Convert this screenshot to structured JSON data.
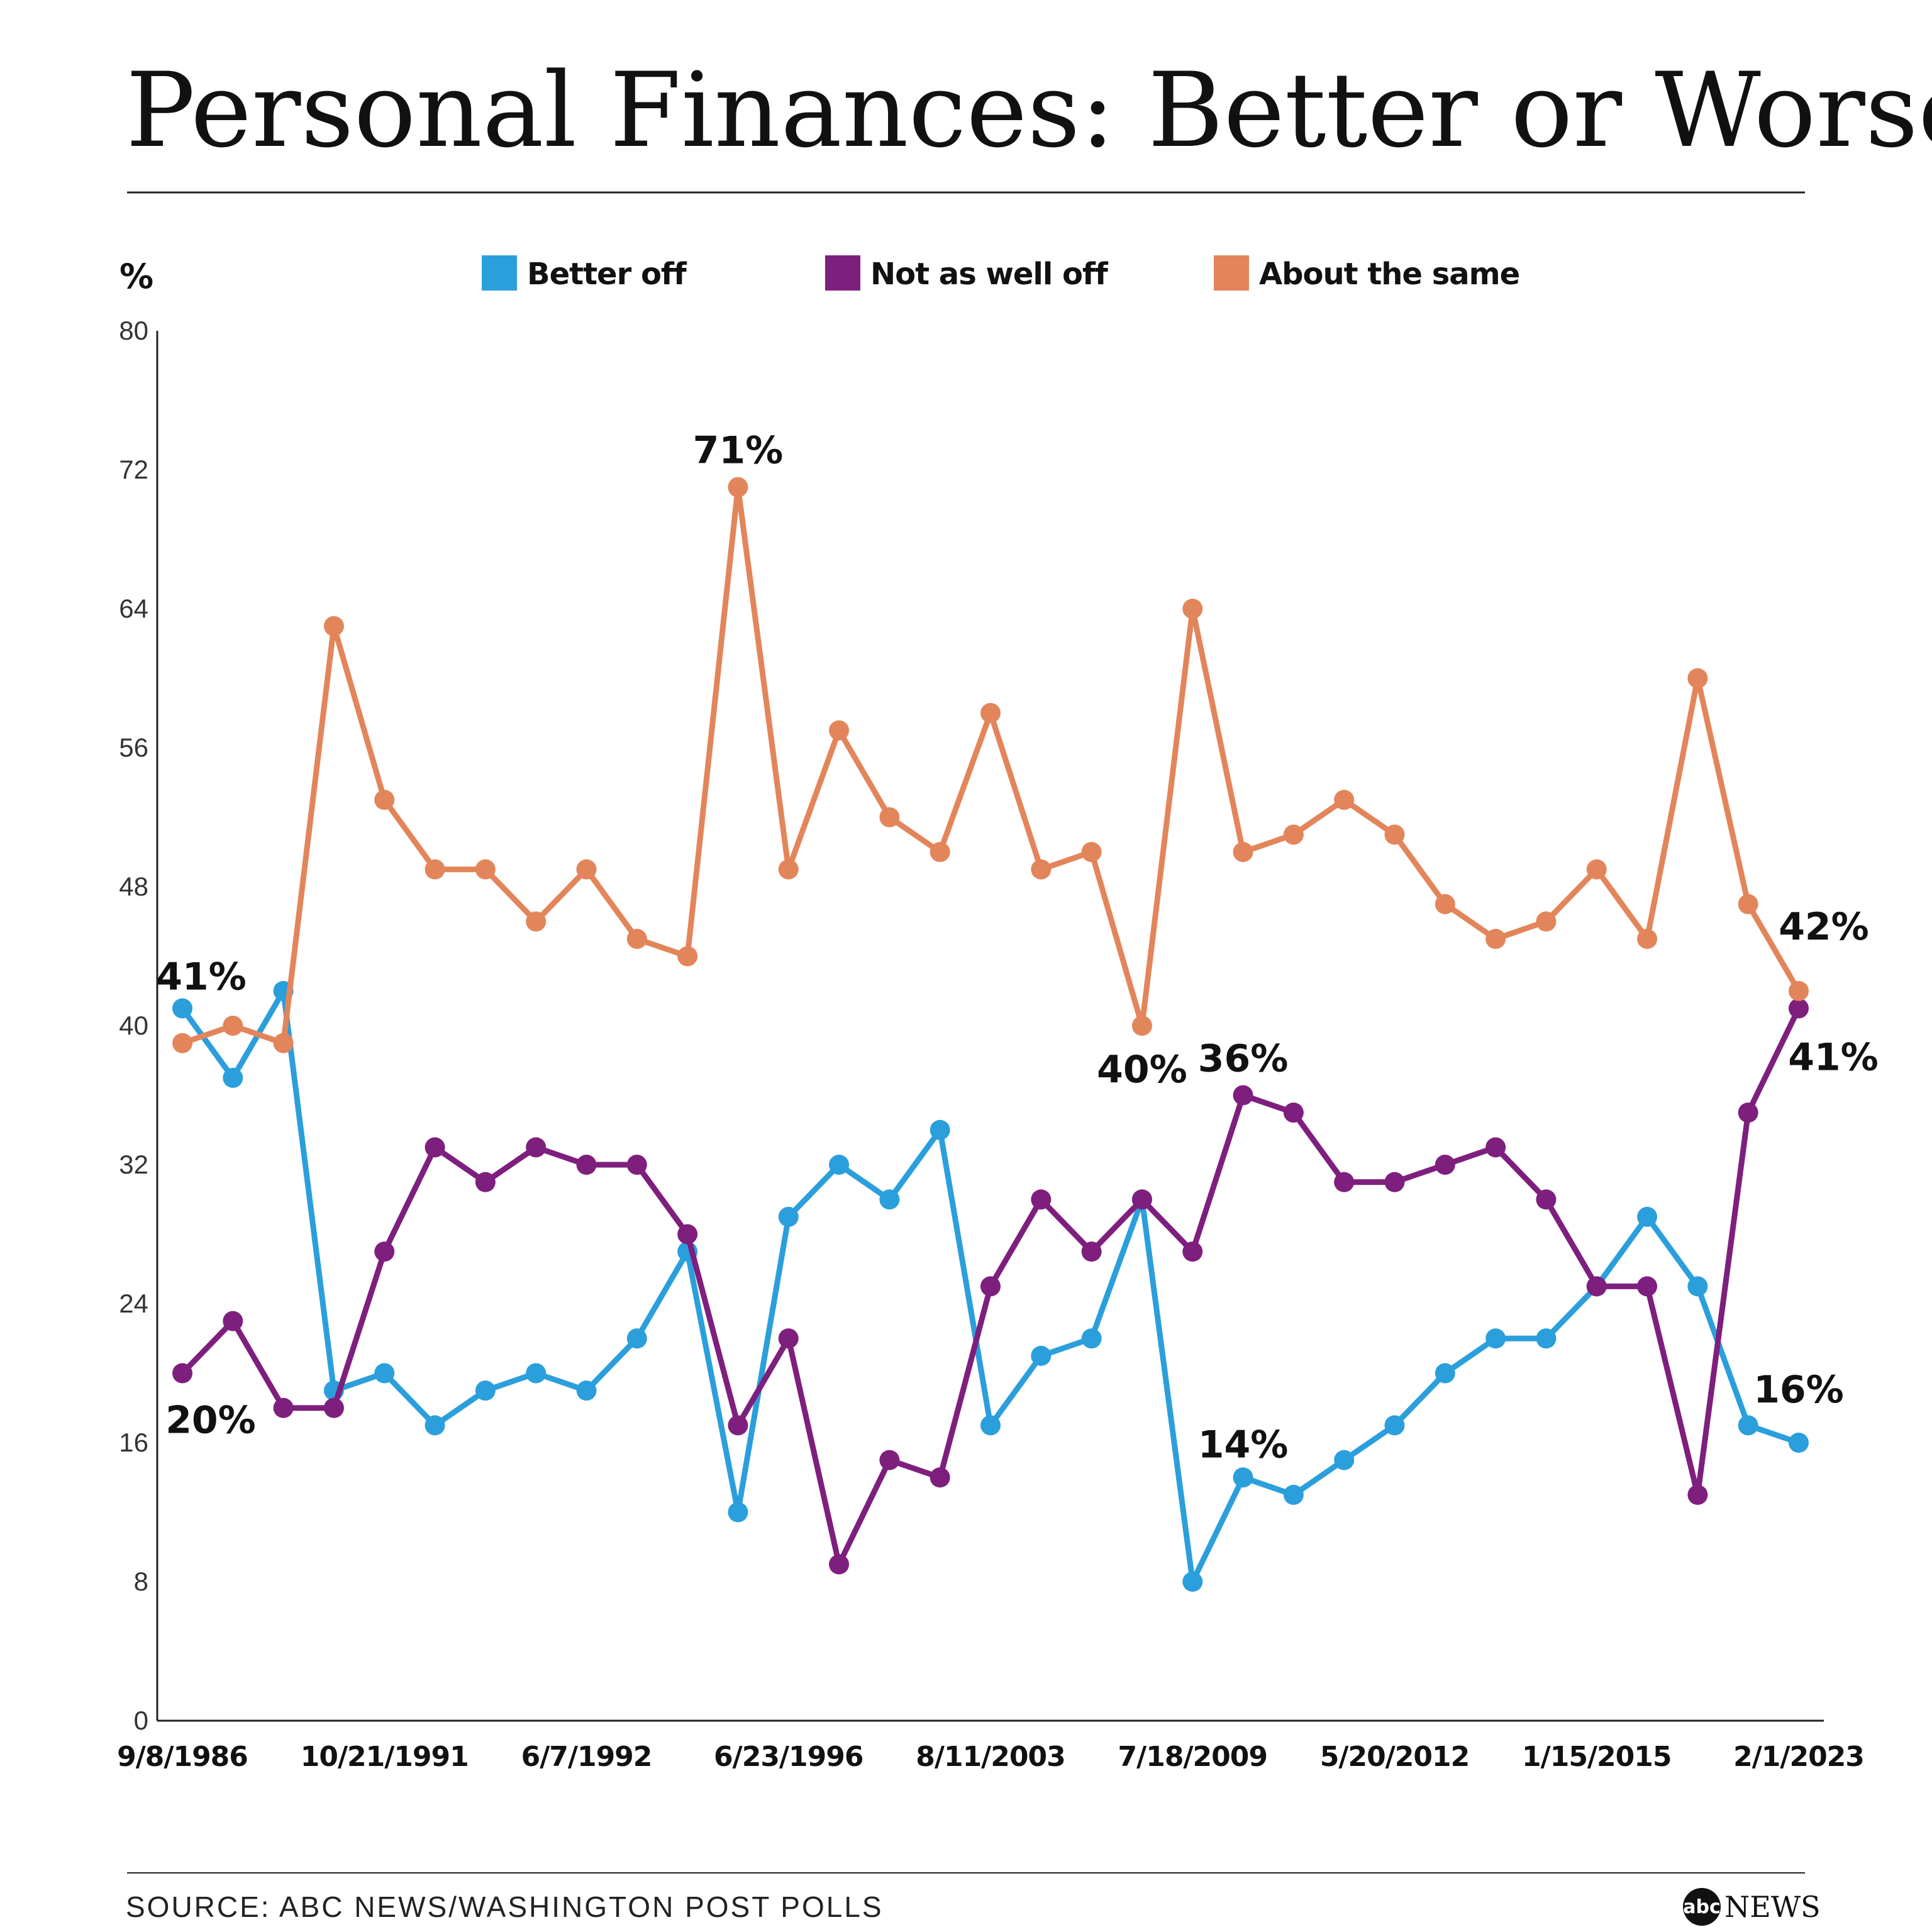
{
  "chart_data": {
    "type": "line",
    "title": "Personal Finances: Better or Worse?",
    "ylabel": "%",
    "ylim": [
      0,
      80
    ],
    "yticks": [
      0,
      8,
      16,
      24,
      32,
      40,
      48,
      56,
      64,
      72,
      80
    ],
    "x_tick_labels": [
      "9/8/1986",
      "10/21/1991",
      "6/7/1992",
      "6/23/1996",
      "8/11/2003",
      "7/18/2009",
      "5/20/2012",
      "1/15/2015",
      "2/1/2023"
    ],
    "legend_position": "top",
    "series": [
      {
        "name": "Better off",
        "color": "#2B9FDC",
        "values": [
          41,
          37,
          42,
          19,
          20,
          17,
          19,
          20,
          19,
          22,
          27,
          12,
          29,
          32,
          30,
          34,
          17,
          21,
          22,
          30,
          8,
          14,
          13,
          15,
          17,
          20,
          22,
          22,
          25,
          29,
          25,
          17,
          16
        ]
      },
      {
        "name": "Not as well off",
        "color": "#7E1F7E",
        "values": [
          20,
          23,
          18,
          18,
          27,
          33,
          31,
          33,
          32,
          32,
          28,
          17,
          22,
          9,
          15,
          14,
          25,
          30,
          27,
          30,
          27,
          36,
          35,
          31,
          31,
          32,
          33,
          30,
          25,
          25,
          13,
          35,
          41
        ]
      },
      {
        "name": "About the same",
        "color": "#E3855A",
        "values": [
          39,
          40,
          39,
          63,
          53,
          49,
          49,
          46,
          49,
          45,
          44,
          71,
          49,
          57,
          52,
          50,
          58,
          49,
          50,
          40,
          64,
          50,
          51,
          53,
          51,
          47,
          45,
          46,
          49,
          45,
          60,
          47,
          42
        ]
      }
    ],
    "annotations": [
      {
        "text": "41%",
        "series": 0,
        "index": 0
      },
      {
        "text": "20%",
        "series": 1,
        "index": 0
      },
      {
        "text": "71%",
        "series": 2,
        "index": 11
      },
      {
        "text": "40%",
        "series": 2,
        "index": 19
      },
      {
        "text": "36%",
        "series": 1,
        "index": 21
      },
      {
        "text": "14%",
        "series": 0,
        "index": 21
      },
      {
        "text": "42%",
        "series": 2,
        "index": 32
      },
      {
        "text": "41%",
        "series": 1,
        "index": 32
      },
      {
        "text": "16%",
        "series": 0,
        "index": 32
      }
    ]
  },
  "source": "SOURCE: ABC NEWS/WASHINGTON POST POLLS",
  "logo": {
    "badge": "abc",
    "text": "NEWS"
  }
}
